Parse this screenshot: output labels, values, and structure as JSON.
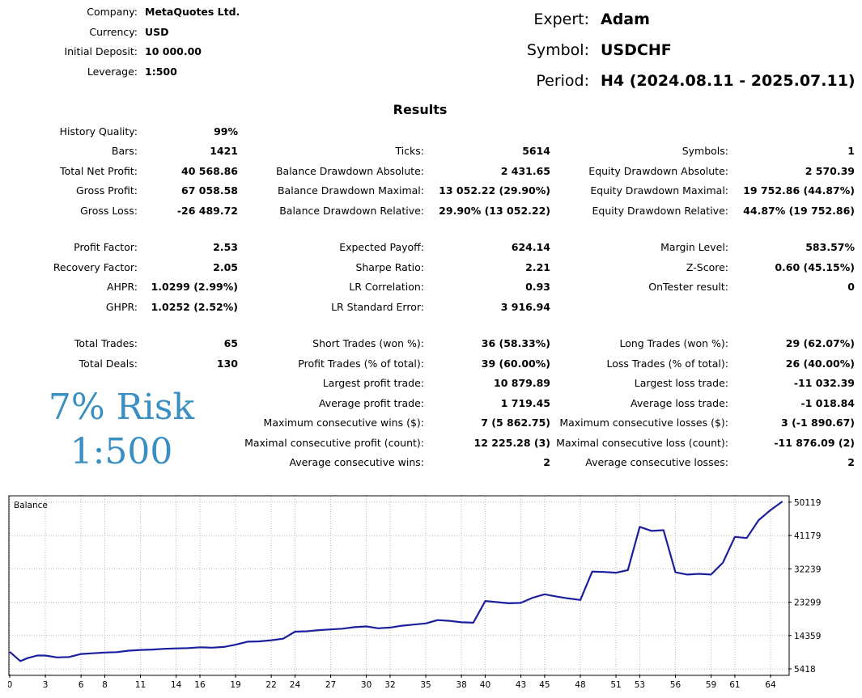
{
  "header": {
    "left": [
      {
        "label": "Company:",
        "value": "MetaQuotes Ltd."
      },
      {
        "label": "Currency:",
        "value": "USD"
      },
      {
        "label": "Initial Deposit:",
        "value": "10 000.00"
      },
      {
        "label": "Leverage:",
        "value": "1:500"
      }
    ],
    "right": [
      {
        "label": "Expert:",
        "value": "Adam"
      },
      {
        "label": "Symbol:",
        "value": "USDCHF"
      },
      {
        "label": "Period:",
        "value": "H4 (2024.08.11 - 2025.07.11)"
      }
    ]
  },
  "results_title": "Results",
  "col1": [
    {
      "label": "History Quality:",
      "value": "99%"
    },
    {
      "label": "Bars:",
      "value": "1421"
    },
    {
      "label": "Total Net Profit:",
      "value": "40 568.86"
    },
    {
      "label": "Gross Profit:",
      "value": "67 058.58"
    },
    {
      "label": "Gross Loss:",
      "value": "-26 489.72"
    },
    {
      "label": "Profit Factor:",
      "value": "2.53"
    },
    {
      "label": "Recovery Factor:",
      "value": "2.05"
    },
    {
      "label": "AHPR:",
      "value": "1.0299 (2.99%)"
    },
    {
      "label": "GHPR:",
      "value": "1.0252 (2.52%)"
    },
    {
      "label": "Total Trades:",
      "value": "65"
    },
    {
      "label": "Total Deals:",
      "value": "130"
    }
  ],
  "col2": [
    {
      "label": "Ticks:",
      "value": "5614"
    },
    {
      "label": "Balance Drawdown Absolute:",
      "value": "2 431.65"
    },
    {
      "label": "Balance Drawdown Maximal:",
      "value": "13 052.22 (29.90%)"
    },
    {
      "label": "Balance Drawdown Relative:",
      "value": "29.90% (13 052.22)"
    },
    {
      "label": "Expected Payoff:",
      "value": "624.14"
    },
    {
      "label": "Sharpe Ratio:",
      "value": "2.21"
    },
    {
      "label": "LR Correlation:",
      "value": "0.93"
    },
    {
      "label": "LR Standard Error:",
      "value": "3 916.94"
    },
    {
      "label": "Short Trades (won %):",
      "value": "36 (58.33%)"
    },
    {
      "label": "Profit Trades (% of total):",
      "value": "39 (60.00%)"
    },
    {
      "label": "Largest profit trade:",
      "value": "10 879.89"
    },
    {
      "label": "Average profit trade:",
      "value": "1 719.45"
    },
    {
      "label": "Maximum consecutive wins ($):",
      "value": "7 (5 862.75)"
    },
    {
      "label": "Maximal consecutive profit (count):",
      "value": "12 225.28 (3)"
    },
    {
      "label": "Average consecutive wins:",
      "value": "2"
    }
  ],
  "col3": [
    {
      "label": "Symbols:",
      "value": "1"
    },
    {
      "label": "Equity Drawdown Absolute:",
      "value": "2 570.39"
    },
    {
      "label": "Equity Drawdown Maximal:",
      "value": "19 752.86 (44.87%)"
    },
    {
      "label": "Equity Drawdown Relative:",
      "value": "44.87% (19 752.86)"
    },
    {
      "label": "Margin Level:",
      "value": "583.57%"
    },
    {
      "label": "Z-Score:",
      "value": "0.60 (45.15%)"
    },
    {
      "label": "OnTester result:",
      "value": "0"
    },
    {
      "label": "Long Trades (won %):",
      "value": "29 (62.07%)"
    },
    {
      "label": "Loss Trades (% of total):",
      "value": "26 (40.00%)"
    },
    {
      "label": "Largest loss trade:",
      "value": "-11 032.39"
    },
    {
      "label": "Average loss trade:",
      "value": "-1 018.84"
    },
    {
      "label": "Maximum consecutive losses ($):",
      "value": "3 (-1 890.67)"
    },
    {
      "label": "Maximal consecutive loss (count):",
      "value": "-11 876.09 (2)"
    },
    {
      "label": "Average consecutive losses:",
      "value": "2"
    }
  ],
  "overlay": {
    "line1": "7% Risk",
    "line2": "1:500",
    "color": "#3a8fc2"
  },
  "chart_data": {
    "type": "line",
    "title": "Balance",
    "line_color": "#1b1f9e",
    "grid": true,
    "x_ticks": [
      0,
      3,
      6,
      8,
      11,
      14,
      16,
      19,
      22,
      24,
      27,
      30,
      32,
      35,
      38,
      40,
      43,
      45,
      48,
      51,
      53,
      56,
      59,
      61,
      64
    ],
    "y_ticks": [
      5418,
      14359,
      23299,
      32239,
      41179,
      50119
    ],
    "xlim": [
      0,
      65.5
    ],
    "ylim": [
      3900,
      51600
    ],
    "x": [
      0,
      0.9,
      1.5,
      2.3,
      3,
      4,
      5,
      6,
      7,
      8,
      9,
      10,
      11,
      12,
      13,
      14,
      15,
      16,
      17,
      18,
      19,
      20,
      21,
      22,
      23,
      24,
      25,
      26,
      27,
      28,
      29,
      30,
      31,
      32,
      33,
      34,
      35,
      36,
      37,
      38,
      39,
      40,
      41,
      42,
      43,
      44,
      45,
      46,
      47,
      48,
      49,
      50,
      51,
      52,
      53,
      54,
      55,
      56,
      57,
      58,
      59,
      60,
      61,
      62,
      63,
      64,
      65
    ],
    "y": [
      10000,
      7500,
      8300,
      9000,
      9000,
      8500,
      8600,
      9400,
      9600,
      9800,
      9900,
      10300,
      10500,
      10600,
      10800,
      10900,
      11000,
      11200,
      11100,
      11300,
      11900,
      12700,
      12800,
      13100,
      13500,
      15400,
      15500,
      15800,
      16000,
      16200,
      16600,
      16800,
      16300,
      16500,
      17000,
      17300,
      17600,
      18500,
      18300,
      17900,
      17800,
      23600,
      23300,
      23000,
      23100,
      24500,
      25400,
      24800,
      24300,
      23900,
      31500,
      31400,
      31200,
      31900,
      43500,
      42400,
      42600,
      31300,
      30700,
      30900,
      30700,
      33900,
      40800,
      40500,
      45300,
      48000,
      50300
    ]
  }
}
